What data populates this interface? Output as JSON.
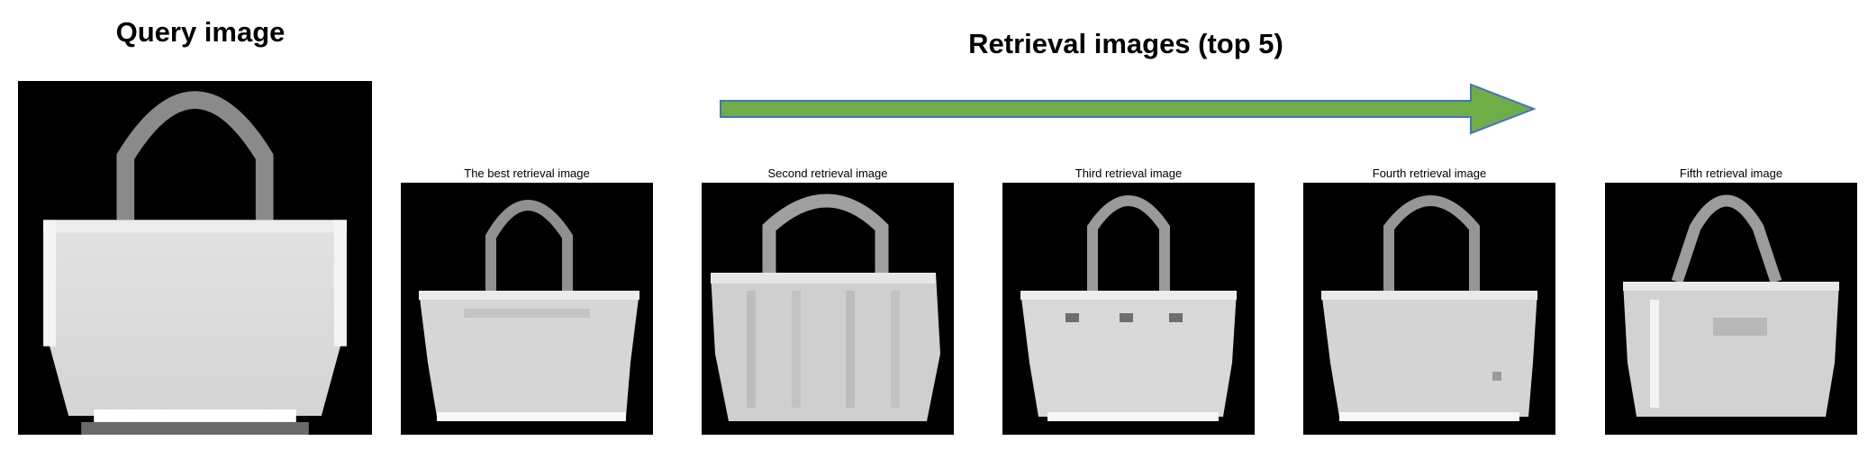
{
  "query": {
    "title": "Query image",
    "image_icon": "handbag-grayscale-image"
  },
  "retrieval": {
    "title": "Retrieval images (top 5)",
    "arrow_color": "#70AD47",
    "arrow_outline": "#4472C4",
    "images": [
      {
        "caption": "The best retrieval image",
        "icon": "handbag-grayscale-image"
      },
      {
        "caption": "Second retrieval image",
        "icon": "handbag-grayscale-image"
      },
      {
        "caption": "Third retrieval image",
        "icon": "handbag-grayscale-image"
      },
      {
        "caption": "Fourth retrieval image",
        "icon": "handbag-grayscale-image"
      },
      {
        "caption": "Fifth retrieval image",
        "icon": "handbag-grayscale-image"
      }
    ]
  }
}
